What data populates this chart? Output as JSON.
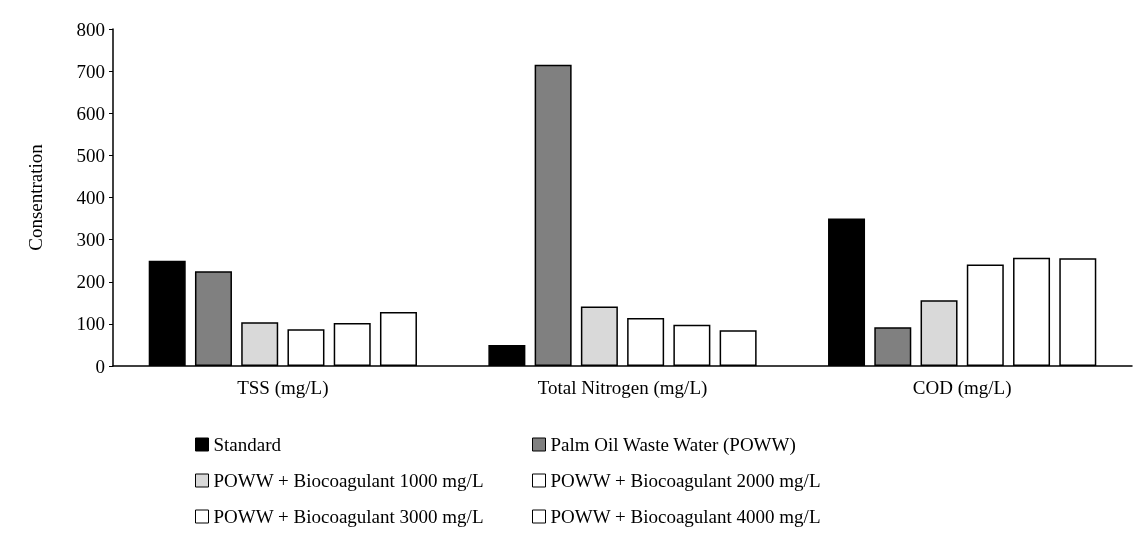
{
  "chart_data": {
    "type": "bar",
    "ylabel": "Consentration",
    "categories": [
      "TSS (mg/L)",
      "Total Nitrogen (mg/L)",
      "COD (mg/L)"
    ],
    "series": [
      {
        "name": "Standard",
        "color": "#000000",
        "values": [
          250,
          50,
          350
        ]
      },
      {
        "name": "Palm Oil Waste Water (POWW)",
        "color": "#808080",
        "values": [
          225,
          715,
          92
        ]
      },
      {
        "name": "POWW + Biocoagulant 1000 mg/L",
        "color": "#d9d9d9",
        "values": [
          104,
          141,
          156
        ]
      },
      {
        "name": "POWW + Biocoagulant 2000 mg/L",
        "color": "#ffffff",
        "values": [
          87,
          114,
          241
        ]
      },
      {
        "name": "POWW + Biocoagulant 3000 mg/L",
        "color": "#ffffff",
        "values": [
          102,
          98,
          257
        ]
      },
      {
        "name": "POWW + Biocoagulant 4000 mg/L",
        "color": "#ffffff",
        "values": [
          128,
          85,
          256
        ]
      }
    ],
    "ylim": [
      0,
      800
    ],
    "yticks": [
      0,
      100,
      200,
      300,
      400,
      500,
      600,
      700,
      800
    ],
    "grid": false,
    "legend": "bottom"
  }
}
